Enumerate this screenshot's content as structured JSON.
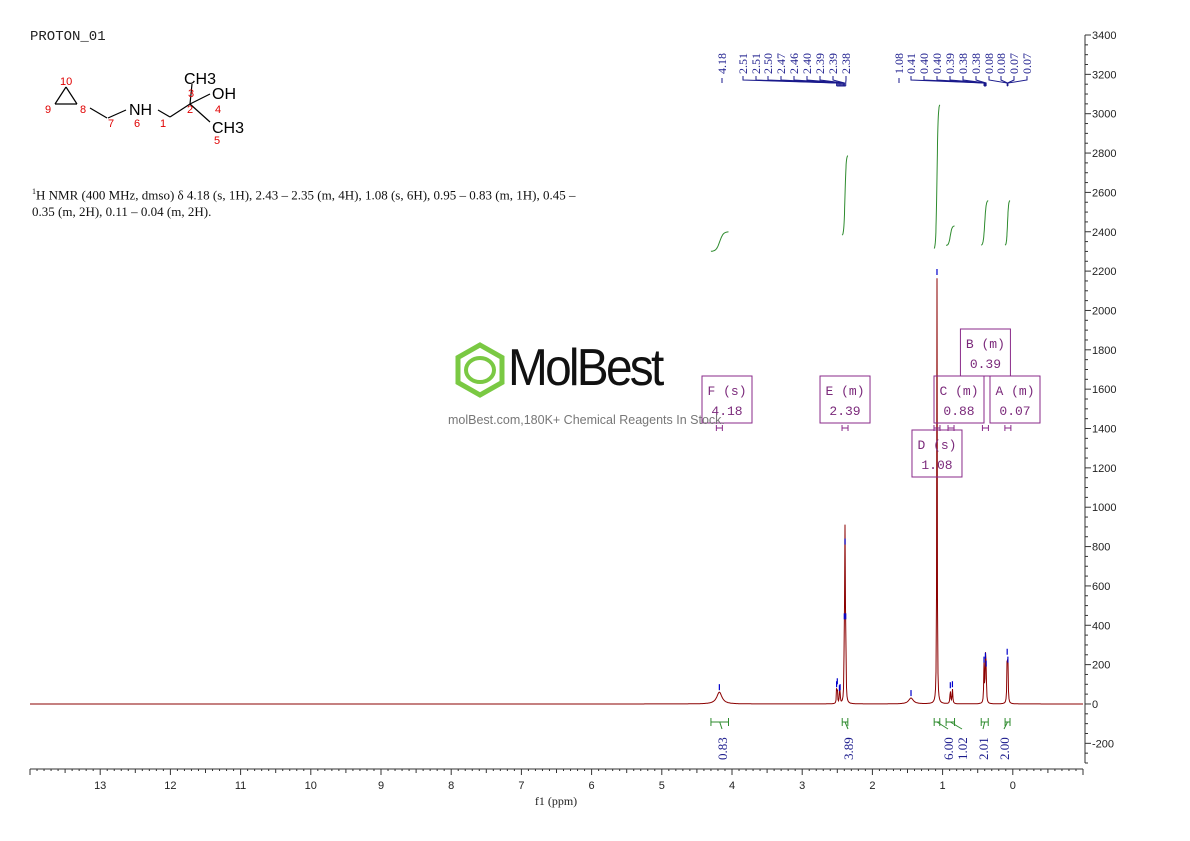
{
  "sample_name": "PROTON_01",
  "nmr_summary": {
    "nucleus_sup": "1",
    "text": "H NMR (400 MHz, dmso) δ 4.18 (s, 1H), 2.43 – 2.35 (m, 4H), 1.08 (s, 6H), 0.95 – 0.83 (m, 1H), 0.45 – 0.35 (m, 2H), 0.11 – 0.04 (m, 2H)."
  },
  "structure": {
    "atoms": [
      "CH3",
      "OH",
      "NH",
      "CH3"
    ],
    "subscripts": [
      "3",
      "3"
    ],
    "numbers": [
      "10",
      "9",
      "8",
      "7",
      "6",
      "1",
      "2",
      "3",
      "4",
      "5"
    ]
  },
  "logo": {
    "name": "MolBest",
    "tagline": "molBest.com,180K+ Chemical Reagents In Stock."
  },
  "chart_data": {
    "type": "line",
    "xlabel": "f1 (ppm)",
    "ylabel": "",
    "xlim": [
      14.0,
      -1.0
    ],
    "ylim": [
      -300,
      3400
    ],
    "x_ticks": [
      13,
      12,
      11,
      10,
      9,
      8,
      7,
      6,
      5,
      4,
      3,
      2,
      1,
      0
    ],
    "y_ticks": [
      3400,
      3200,
      3000,
      2800,
      2600,
      2400,
      2200,
      2000,
      1800,
      1600,
      1400,
      1200,
      1000,
      800,
      600,
      400,
      200,
      0,
      -200
    ],
    "peaks": [
      {
        "ppm": 4.18,
        "height": 60,
        "width": 0.045
      },
      {
        "ppm": 2.51,
        "height": 75,
        "width": 0.004
      },
      {
        "ppm": 2.5,
        "height": 90,
        "width": 0.004
      },
      {
        "ppm": 2.47,
        "height": 55,
        "width": 0.004
      },
      {
        "ppm": 2.46,
        "height": 60,
        "width": 0.004
      },
      {
        "ppm": 2.4,
        "height": 420,
        "width": 0.004
      },
      {
        "ppm": 2.39,
        "height": 800,
        "width": 0.004
      },
      {
        "ppm": 2.38,
        "height": 420,
        "width": 0.004
      },
      {
        "ppm": 1.45,
        "height": 30,
        "width": 0.04
      },
      {
        "ppm": 1.08,
        "height": 2170,
        "width": 0.004
      },
      {
        "ppm": 0.89,
        "height": 70,
        "width": 0.006
      },
      {
        "ppm": 0.86,
        "height": 75,
        "width": 0.006
      },
      {
        "ppm": 0.41,
        "height": 200,
        "width": 0.005
      },
      {
        "ppm": 0.39,
        "height": 220,
        "width": 0.005
      },
      {
        "ppm": 0.38,
        "height": 180,
        "width": 0.005
      },
      {
        "ppm": 0.08,
        "height": 240,
        "width": 0.005
      },
      {
        "ppm": 0.07,
        "height": 200,
        "width": 0.005
      }
    ],
    "peak_labels": [
      "4.18",
      "2.51",
      "2.51",
      "2.50",
      "2.47",
      "2.46",
      "2.40",
      "2.39",
      "2.39",
      "2.38",
      "1.08",
      "0.41",
      "0.40",
      "0.40",
      "0.39",
      "0.38",
      "0.38",
      "0.08",
      "0.08",
      "0.07",
      "0.07"
    ],
    "peak_groups": [
      {
        "labels": 1,
        "from": 4.18,
        "to": 4.18
      },
      {
        "labels": 9,
        "from": 2.51,
        "to": 2.38
      },
      {
        "labels": 1,
        "from": 1.08,
        "to": 1.08
      },
      {
        "labels": 6,
        "from": 0.41,
        "to": 0.38
      },
      {
        "labels": 4,
        "from": 0.08,
        "to": 0.07
      }
    ],
    "integrals": [
      {
        "from": 4.3,
        "to": 4.05,
        "label": "0.83",
        "rise_from": 2300,
        "rise_to": 2400
      },
      {
        "from": 2.43,
        "to": 2.35,
        "label": "3.89",
        "rise_from": 2380,
        "rise_to": 2790
      },
      {
        "from": 1.12,
        "to": 1.04,
        "label": "6.00",
        "rise_from": 2310,
        "rise_to": 3050
      },
      {
        "from": 0.95,
        "to": 0.83,
        "label": "1.02",
        "rise_from": 2330,
        "rise_to": 2430
      },
      {
        "from": 0.45,
        "to": 0.35,
        "label": "2.01",
        "rise_from": 2330,
        "rise_to": 2560
      },
      {
        "from": 0.11,
        "to": 0.04,
        "label": "2.00",
        "rise_from": 2330,
        "rise_to": 2560
      }
    ],
    "multiplets": [
      {
        "id": "F",
        "type": "(s)",
        "shift": "4.18",
        "center": 4.18,
        "level": 1
      },
      {
        "id": "E",
        "type": "(m)",
        "shift": "2.39",
        "center": 2.39,
        "level": 1
      },
      {
        "id": "D",
        "type": "(s)",
        "shift": "1.08",
        "center": 1.08,
        "level": 0
      },
      {
        "id": "C",
        "type": "(m)",
        "shift": "0.88",
        "center": 0.88,
        "level": 1
      },
      {
        "id": "B",
        "type": "(m)",
        "shift": "0.39",
        "center": 0.39,
        "level": 2
      },
      {
        "id": "A",
        "type": "(m)",
        "shift": "0.07",
        "center": 0.07,
        "level": 1
      }
    ]
  },
  "colors": {
    "spectrum": "#8b0000",
    "peak_marker": "#0000cc",
    "peak_label": "#1a1a8c",
    "integral": "#2e8b2e",
    "multiplet_box": "#8a2a8a",
    "logo_green": "#7ac943"
  }
}
